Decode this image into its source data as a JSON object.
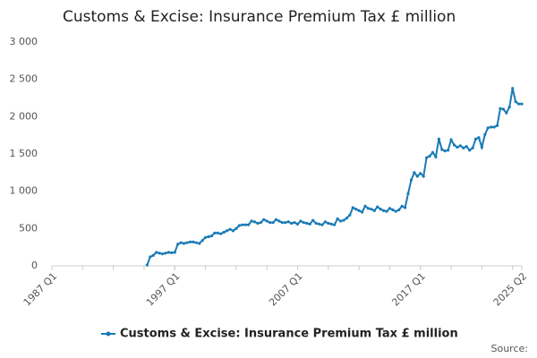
{
  "chart_data": {
    "type": "line",
    "title": "Customs & Excise: Insurance Premium Tax £ million",
    "source": "Source:",
    "categories": [
      "1987 Q1",
      null,
      null,
      null,
      null,
      null,
      null,
      null,
      null,
      null,
      null,
      null,
      null,
      null,
      null,
      null,
      null,
      null,
      null,
      null,
      null,
      null,
      null,
      null,
      null,
      null,
      null,
      null,
      null,
      null,
      null,
      null,
      null,
      null,
      null,
      null,
      null,
      null,
      null,
      null,
      "1997 Q1",
      null,
      null,
      null,
      null,
      null,
      null,
      null,
      null,
      null,
      null,
      null,
      null,
      null,
      null,
      null,
      null,
      null,
      null,
      null,
      null,
      null,
      null,
      null,
      null,
      null,
      null,
      null,
      null,
      null,
      null,
      null,
      null,
      null,
      null,
      null,
      null,
      null,
      null,
      null,
      "2007 Q1",
      null,
      null,
      null,
      null,
      null,
      null,
      null,
      null,
      null,
      null,
      null,
      null,
      null,
      null,
      null,
      null,
      null,
      null,
      null,
      null,
      null,
      null,
      null,
      null,
      null,
      null,
      null,
      null,
      null,
      null,
      null,
      null,
      null,
      null,
      null,
      null,
      null,
      null,
      null,
      "2017 Q1",
      null,
      null,
      null,
      null,
      null,
      null,
      null,
      null,
      null,
      null,
      null,
      null,
      null,
      null,
      null,
      null,
      null,
      null,
      null,
      null,
      null,
      null,
      null,
      null,
      null,
      null,
      null,
      null,
      null,
      null,
      null,
      null,
      "2025 Q2"
    ],
    "series": [
      {
        "name": "Customs & Excise: Insurance Premium Tax £ million",
        "color": "#1a7ab5",
        "values": [
          null,
          null,
          null,
          null,
          null,
          null,
          null,
          null,
          null,
          null,
          null,
          null,
          null,
          null,
          null,
          null,
          null,
          null,
          null,
          null,
          null,
          null,
          null,
          null,
          null,
          null,
          null,
          null,
          null,
          null,
          null,
          10,
          120,
          140,
          180,
          170,
          160,
          170,
          180,
          175,
          180,
          290,
          310,
          300,
          310,
          320,
          320,
          310,
          300,
          340,
          380,
          390,
          400,
          440,
          440,
          430,
          450,
          470,
          490,
          470,
          500,
          540,
          550,
          550,
          550,
          600,
          590,
          570,
          580,
          620,
          600,
          580,
          580,
          620,
          600,
          580,
          580,
          590,
          570,
          580,
          560,
          600,
          580,
          570,
          560,
          610,
          570,
          560,
          550,
          590,
          570,
          560,
          550,
          630,
          600,
          610,
          640,
          680,
          780,
          760,
          740,
          720,
          800,
          770,
          760,
          740,
          790,
          760,
          740,
          730,
          770,
          750,
          730,
          750,
          800,
          780,
          970,
          1150,
          1250,
          1200,
          1240,
          1200,
          1450,
          1470,
          1520,
          1460,
          1700,
          1560,
          1540,
          1550,
          1690,
          1620,
          1590,
          1610,
          1580,
          1600,
          1550,
          1580,
          1700,
          1720,
          1590,
          1760,
          1850,
          1860,
          1860,
          1880,
          2110,
          2100,
          2050,
          2130,
          2380,
          2200,
          2170,
          2170
        ]
      }
    ],
    "ylim": [
      0,
      3000
    ],
    "yticks": [
      0,
      500,
      {
        "value": 1000,
        "label": "1 000"
      },
      {
        "value": 1500,
        "label": "1 500"
      },
      {
        "value": 2000,
        "label": "2 000"
      },
      {
        "value": 2500,
        "label": "2 500"
      },
      {
        "value": 3000,
        "label": "3 000"
      }
    ],
    "grid": false,
    "legend": "bottom"
  }
}
